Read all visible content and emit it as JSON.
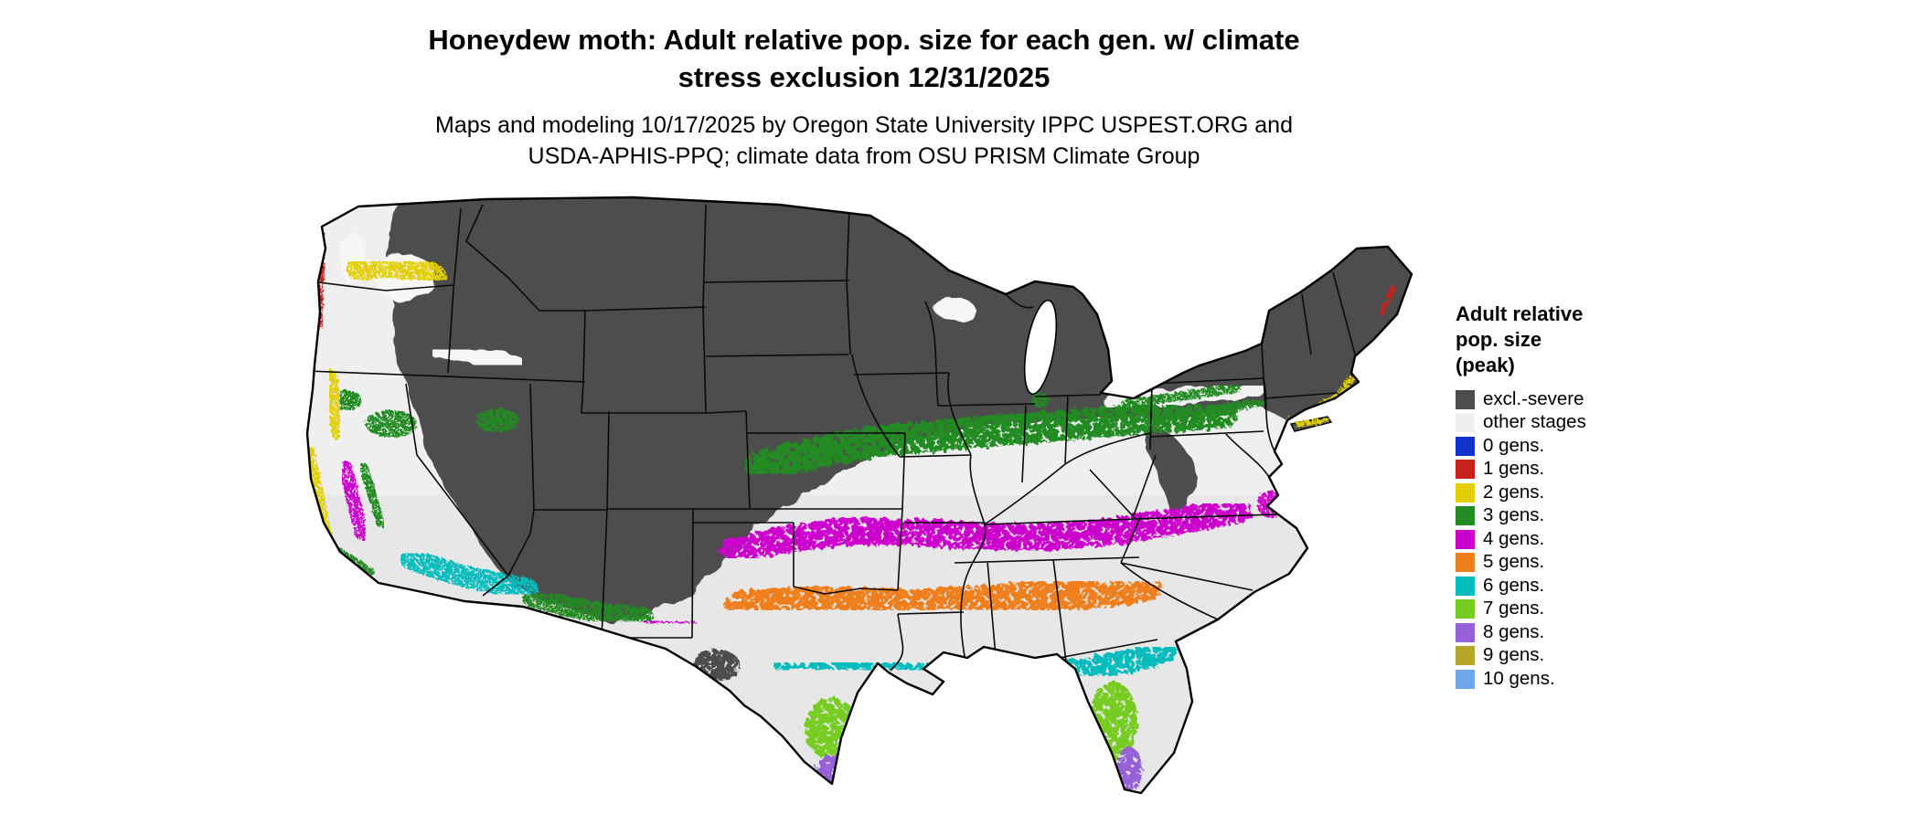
{
  "title": {
    "line1": "Honeydew moth: Adult relative pop. size for each gen. w/ climate",
    "line2": "stress exclusion 12/31/2025"
  },
  "subtitle": {
    "line1": "Maps and modeling 10/17/2025 by Oregon State University IPPC USPEST.ORG and",
    "line2": "USDA-APHIS-PPQ; climate data from OSU PRISM Climate Group"
  },
  "legend": {
    "heading_lines": [
      "Adult relative",
      "pop. size",
      "(peak)"
    ],
    "items": [
      {
        "label": "excl.-severe",
        "color": "#4d4d4d"
      },
      {
        "label": "other stages",
        "color": "#efefef"
      },
      {
        "label": "0 gens.",
        "color": "#1133cc"
      },
      {
        "label": "1 gens.",
        "color": "#c8201a"
      },
      {
        "label": "2 gens.",
        "color": "#e3cf00"
      },
      {
        "label": "3 gens.",
        "color": "#238b23"
      },
      {
        "label": "4 gens.",
        "color": "#cc00cc"
      },
      {
        "label": "5 gens.",
        "color": "#ee7f1c"
      },
      {
        "label": "6 gens.",
        "color": "#00bcbc"
      },
      {
        "label": "7 gens.",
        "color": "#77cc22"
      },
      {
        "label": "8 gens.",
        "color": "#9660d8"
      },
      {
        "label": "9 gens.",
        "color": "#b4a428"
      },
      {
        "label": "10 gens.",
        "color": "#6fa8e8"
      }
    ]
  },
  "map": {
    "region": "contiguous United States",
    "kind": "raster generation-band map with state boundaries",
    "base_color": "#e7e7e7",
    "water_color": "#ffffff",
    "border_color": "#000000"
  }
}
